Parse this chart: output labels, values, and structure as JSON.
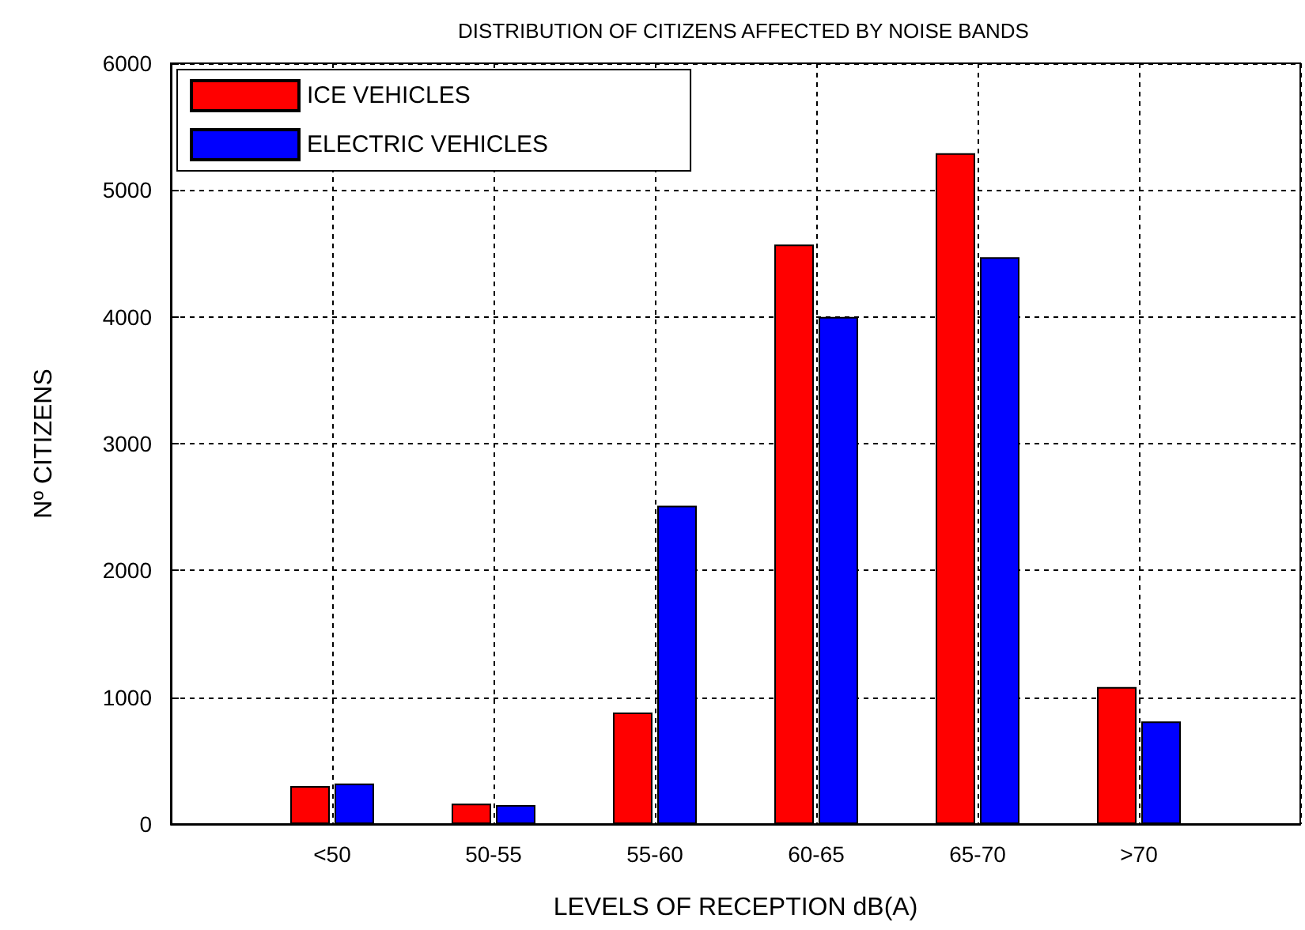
{
  "chart_data": {
    "type": "bar",
    "title": "DISTRIBUTION OF CITIZENS AFFECTED BY NOISE BANDS",
    "xlabel": "LEVELS OF RECEPTION dB(A)",
    "ylabel": "Nº CITIZENS",
    "categories": [
      null,
      "<50",
      "50-55",
      "55-60",
      "60-65",
      "65-70",
      ">70",
      null
    ],
    "series": [
      {
        "name": "ICE VEHICLES",
        "color": "#ff0000",
        "values": [
          null,
          300,
          160,
          880,
          4570,
          5290,
          1080,
          null
        ]
      },
      {
        "name": "ELECTRIC VEHICLES",
        "color": "#0000ff",
        "values": [
          null,
          320,
          150,
          2510,
          4000,
          4470,
          810,
          null
        ]
      }
    ],
    "ylim": [
      0,
      6000
    ],
    "yticks": [
      0,
      1000,
      2000,
      3000,
      4000,
      5000,
      6000
    ],
    "grid": true,
    "legend": "top left"
  }
}
